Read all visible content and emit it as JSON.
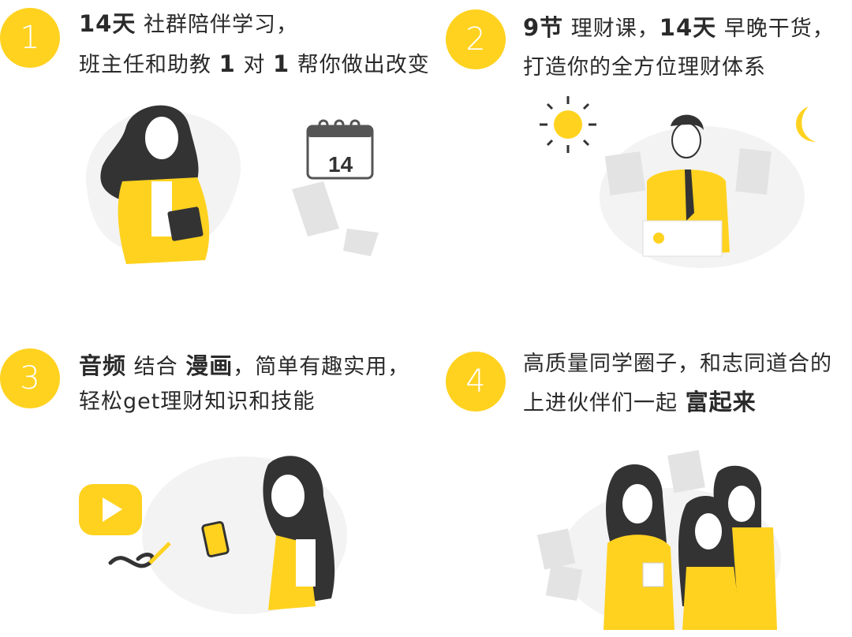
{
  "items": [
    {
      "number": "1",
      "line1": {
        "b1": "14天",
        "t1": " 社群陪伴学习，"
      },
      "line2": {
        "t1": "班主任和助教 ",
        "b1": "1",
        "t2": " 对 ",
        "b2": "1",
        "t3": " 帮你做出改变"
      },
      "calendar_day": "14"
    },
    {
      "number": "2",
      "line1": {
        "b1": "9节",
        "t1": " 理财课，",
        "b2": "14天",
        "t2": " 早晚干货，"
      },
      "line2": {
        "t1": "打造你的全方位理财体系"
      }
    },
    {
      "number": "3",
      "line1": {
        "b1": "音频",
        "t1": " 结合 ",
        "b2": "漫画",
        "t2": "，简单有趣实用，"
      },
      "line2": {
        "t1": "轻松get理财知识和技能"
      }
    },
    {
      "number": "4",
      "line1": {
        "t1": "高质量同学圈子，和志同道合的"
      },
      "line2": {
        "t1": "上进伙伴们一起 ",
        "b1": "富起来"
      }
    }
  ],
  "colors": {
    "accent": "#FFD21F",
    "dark": "#333333",
    "light_gray": "#F3F3F3"
  }
}
